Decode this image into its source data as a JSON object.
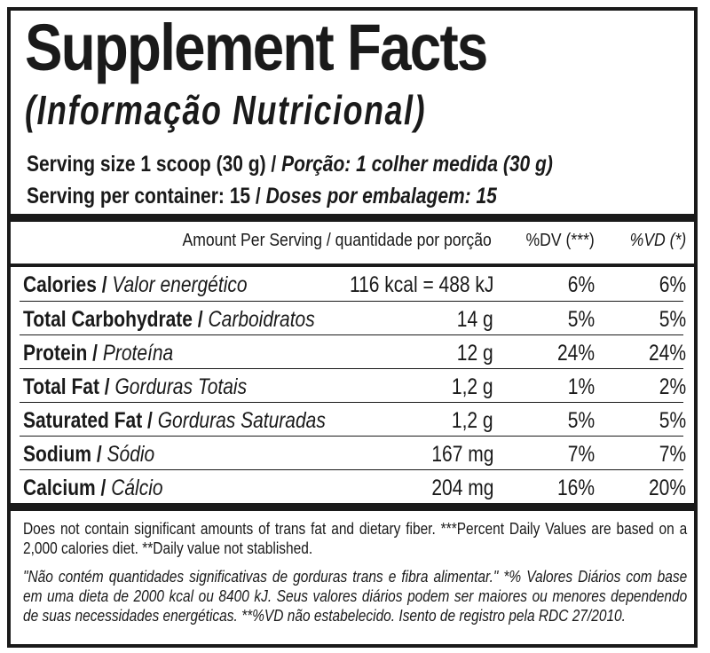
{
  "title": "Supplement Facts",
  "subtitle": "(Informação Nutricional)",
  "serving_size": {
    "en": "Serving size 1 scoop (30 g)",
    "sep": " / ",
    "pt": "Porção: 1 colher medida (30 g)"
  },
  "servings_per_container": {
    "en": "Serving per container: 15",
    "sep": " / ",
    "pt": "Doses por embalagem: 15"
  },
  "table": {
    "headers": {
      "amount": "Amount Per Serving / quantidade por porção",
      "dv": "%DV (***)",
      "vd": "%VD (*)"
    },
    "rows": [
      {
        "en": "Calories",
        "pt": "Valor energético",
        "amount": "116 kcal = 488 kJ",
        "dv": "6%",
        "vd": "6%"
      },
      {
        "en": "Total Carbohydrate",
        "pt": "Carboidratos",
        "amount": "14 g",
        "dv": "5%",
        "vd": "5%"
      },
      {
        "en": "Protein",
        "pt": "Proteína",
        "amount": "12 g",
        "dv": "24%",
        "vd": "24%"
      },
      {
        "en": "Total Fat",
        "pt": "Gorduras Totais",
        "amount": "1,2 g",
        "dv": "1%",
        "vd": "2%"
      },
      {
        "en": "Saturated Fat",
        "pt": "Gorduras Saturadas",
        "amount": "1,2 g",
        "dv": "5%",
        "vd": "5%"
      },
      {
        "en": "Sodium",
        "pt": "Sódio",
        "amount": "167 mg",
        "dv": "7%",
        "vd": "7%"
      },
      {
        "en": "Calcium",
        "pt": "Cálcio",
        "amount": "204 mg",
        "dv": "16%",
        "vd": "20%"
      }
    ]
  },
  "footnote_en": "Does not contain significant amounts of trans fat and dietary fiber. ***Percent Daily Values are based on a 2,000 calories diet. **Daily value not stablished.",
  "footnote_pt": "\"Não contém quantidades significativas de gorduras trans e fibra alimentar.\" *% Valores Diários com base em uma dieta de 2000 kcal ou 8400 kJ. Seus valores diários podem ser maiores ou menores dependendo de suas necessidades energéticas. **%VD não estabelecido. Isento de registro pela RDC 27/2010."
}
